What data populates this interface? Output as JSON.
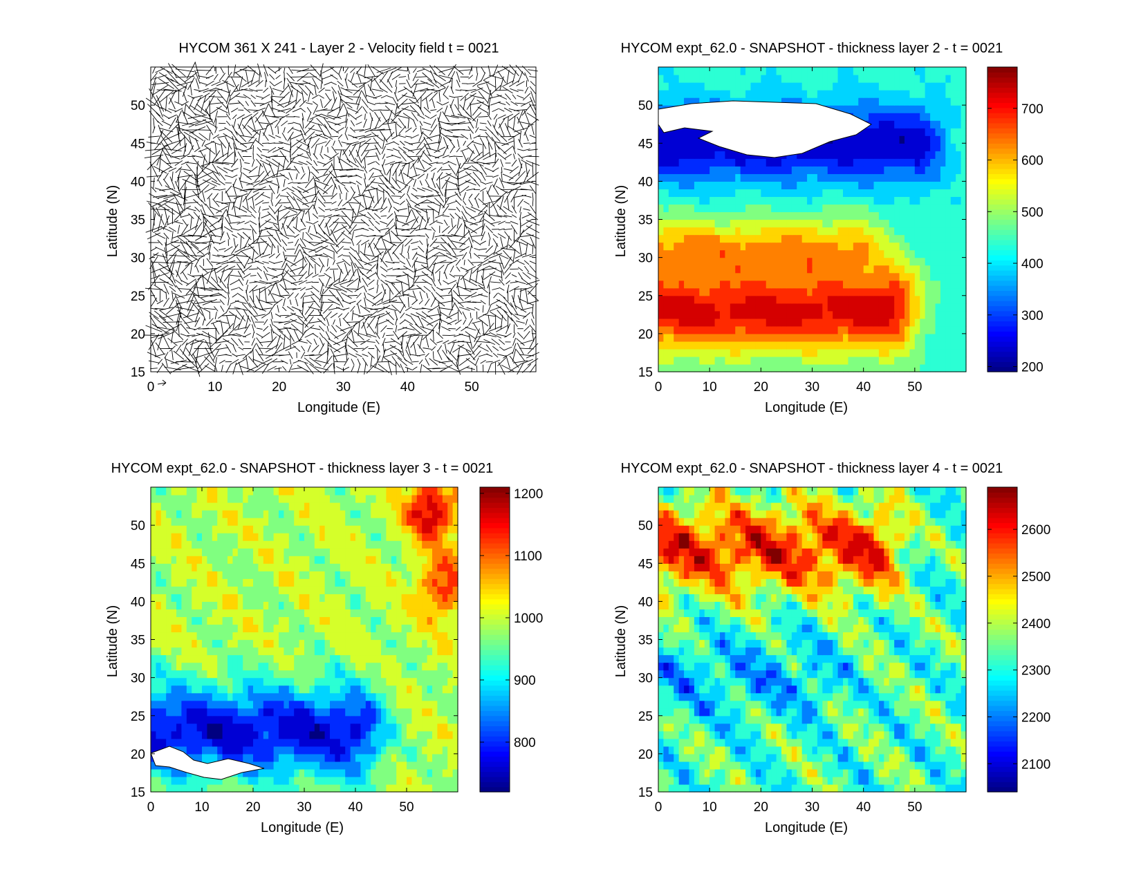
{
  "figure": {
    "background": "#ffffff"
  },
  "chart_data": [
    {
      "type": "quiver",
      "title": "HYCOM 361 X 241 - Layer 2 - Velocity field  t = 0021",
      "xlabel": "Longitude (E)",
      "ylabel": "Latitude (N)",
      "xlim": [
        0,
        60
      ],
      "ylim": [
        15,
        55
      ],
      "xticks": [
        "0",
        "10",
        "20",
        "30",
        "40",
        "50"
      ],
      "yticks": [
        "15",
        "20",
        "25",
        "30",
        "35",
        "40",
        "45",
        "50"
      ],
      "reference_arrow": true,
      "color": "#000000"
    },
    {
      "type": "heatmap",
      "title": "HYCOM expt_62.0 - SNAPSHOT - thickness layer 2 - t = 0021",
      "xlabel": "Longitude (E)",
      "ylabel": "Latitude (N)",
      "xlim": [
        0,
        60
      ],
      "ylim": [
        15,
        55
      ],
      "xticks": [
        "0",
        "10",
        "20",
        "30",
        "40",
        "50"
      ],
      "yticks": [
        "15",
        "20",
        "25",
        "30",
        "35",
        "40",
        "45",
        "50"
      ],
      "colormap": "jet",
      "clim": [
        190,
        780
      ],
      "colorbar_ticks": [
        "200",
        "300",
        "400",
        "500",
        "600",
        "700"
      ],
      "field": {
        "background": 430,
        "features": [
          {
            "kind": "band",
            "lat_center": 23.5,
            "lat_width": 6,
            "lon_max": 45,
            "value": 740
          },
          {
            "kind": "band",
            "lat_center": 30,
            "lat_width": 5,
            "lon_max": 38,
            "value": 640
          },
          {
            "kind": "band",
            "lat_center": 45,
            "lat_width": 5,
            "lon_max": 50,
            "value": 230
          }
        ],
        "land_region": "white patch near 45-52N, 0-42E"
      }
    },
    {
      "type": "heatmap",
      "title": "HYCOM expt_62.0 - SNAPSHOT - thickness layer 3 - t = 0021",
      "xlabel": "Longitude (E)",
      "ylabel": "Latitude (N)",
      "xlim": [
        0,
        60
      ],
      "ylim": [
        15,
        55
      ],
      "xticks": [
        "0",
        "10",
        "20",
        "30",
        "40",
        "50"
      ],
      "yticks": [
        "15",
        "20",
        "25",
        "30",
        "35",
        "40",
        "45",
        "50"
      ],
      "colormap": "jet",
      "clim": [
        720,
        1210
      ],
      "colorbar_ticks": [
        "800",
        "900",
        "1000",
        "1100",
        "1200"
      ],
      "field": {
        "background": 990,
        "features": [
          {
            "kind": "band",
            "lat_center": 23,
            "lat_width": 6,
            "lon_max": 40,
            "value": 770
          },
          {
            "kind": "blob",
            "lon": 55,
            "lat": 52,
            "value": 1190
          },
          {
            "kind": "blob",
            "lon": 57,
            "lat": 42,
            "value": 1140
          }
        ],
        "land_region": "white patch near 17-21N, 0-22E"
      }
    },
    {
      "type": "heatmap",
      "title": "HYCOM expt_62.0 - SNAPSHOT - thickness layer 4 - t = 0021",
      "xlabel": "Longitude (E)",
      "ylabel": "Latitude (N)",
      "xlim": [
        0,
        60
      ],
      "ylim": [
        15,
        55
      ],
      "xticks": [
        "0",
        "10",
        "20",
        "30",
        "40",
        "50"
      ],
      "yticks": [
        "15",
        "20",
        "25",
        "30",
        "35",
        "40",
        "45",
        "50"
      ],
      "colormap": "jet",
      "clim": [
        2040,
        2690
      ],
      "colorbar_ticks": [
        "2100",
        "2200",
        "2300",
        "2400",
        "2500",
        "2600"
      ],
      "field": {
        "background": 2330,
        "features": [
          {
            "kind": "band",
            "lat_center": 47,
            "lat_width": 6,
            "lon_max": 42,
            "value": 2580
          },
          {
            "kind": "band",
            "lat_center": 30,
            "lat_width": 5,
            "lon_max": 30,
            "value": 2250
          }
        ],
        "land_region": "none"
      }
    }
  ]
}
